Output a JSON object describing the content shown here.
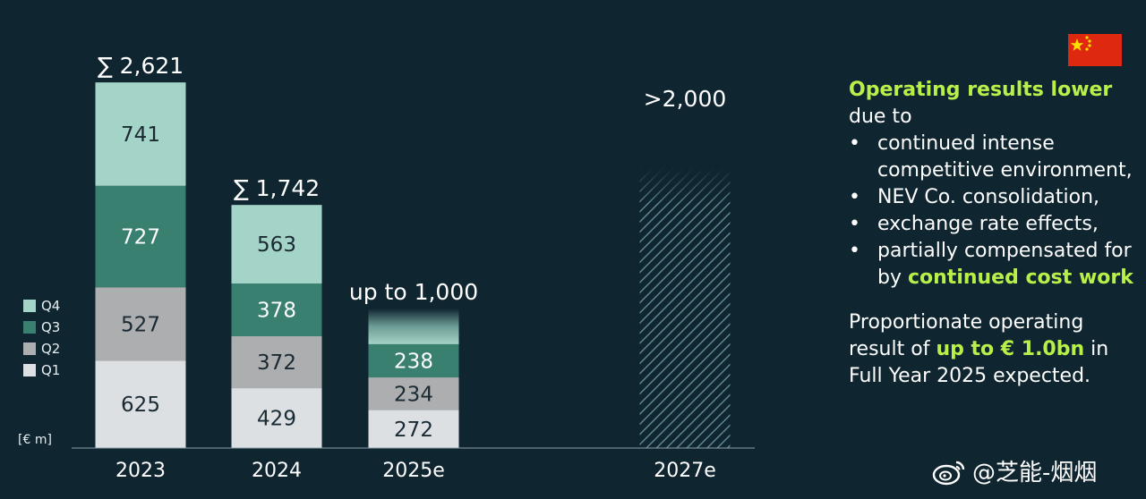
{
  "chart_data": {
    "type": "bar",
    "stacked": true,
    "unit_label": "[€ m]",
    "categories": [
      "2023",
      "2024",
      "2025e",
      "2027e"
    ],
    "series": [
      {
        "name": "Q1",
        "color": "#dde0e3",
        "values": [
          625,
          429,
          272,
          null
        ]
      },
      {
        "name": "Q2",
        "color": "#adaeb0",
        "values": [
          527,
          372,
          234,
          null
        ]
      },
      {
        "name": "Q3",
        "color": "#3a8070",
        "values": [
          727,
          378,
          238,
          null
        ]
      },
      {
        "name": "Q4",
        "color": "#a4d3c8",
        "values": [
          741,
          563,
          null,
          null
        ]
      }
    ],
    "totals": [
      "∑ 2,621",
      "∑ 1,742",
      "up to 1,000",
      ">2,000"
    ],
    "projected": [
      null,
      null,
      1000,
      2000
    ],
    "legend": [
      "Q4",
      "Q3",
      "Q2",
      "Q1"
    ],
    "legend_placement": "left",
    "ylim": [
      0,
      2700
    ],
    "grid": false
  },
  "panel": {
    "headline": "Operating results lower",
    "headline_rest": "due to",
    "bullet_symbol": "•",
    "bullets": [
      {
        "text": "continued intense competitive environment,"
      },
      {
        "text": "NEV Co. consolidation,"
      },
      {
        "text": "exchange rate effects,"
      },
      {
        "text": "partially compensated for by ",
        "highlight": "continued cost work"
      }
    ],
    "summary_pre": "Proportionate operating result of ",
    "summary_hl": "up to € 1.0bn",
    "summary_post": " in Full Year 2025 expected."
  },
  "watermark": "@芝能-烟烟",
  "flag_icon": "china-flag-icon"
}
